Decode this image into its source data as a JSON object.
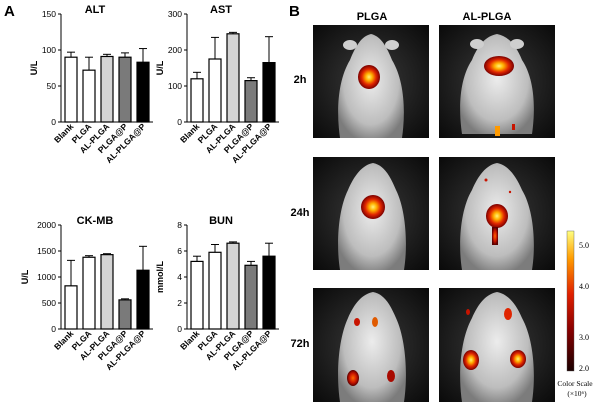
{
  "panel_a_label": "A",
  "panel_b_label": "B",
  "chart_data": [
    {
      "type": "bar",
      "title": "ALT",
      "ylabel": "U/L",
      "ylim": [
        0,
        150
      ],
      "yticks": [
        "0",
        "50",
        "100",
        "150"
      ],
      "categories": [
        "Blank",
        "PLGA",
        "AL-PLGA",
        "PLGA@P",
        "AL-PLGA@P"
      ],
      "values": [
        90,
        72,
        91,
        90,
        83
      ],
      "errors": [
        7,
        18,
        3,
        6,
        19
      ],
      "colors": [
        "#ffffff",
        "#ffffff",
        "#d4d4d4",
        "#7a7a7a",
        "#000000"
      ]
    },
    {
      "type": "bar",
      "title": "AST",
      "ylabel": "U/L",
      "ylim": [
        0,
        300
      ],
      "yticks": [
        "0",
        "100",
        "200",
        "300"
      ],
      "categories": [
        "Blank",
        "PLGA",
        "AL-PLGA",
        "PLGA@P",
        "AL-PLGA@P"
      ],
      "values": [
        120,
        175,
        245,
        115,
        165
      ],
      "errors": [
        18,
        60,
        4,
        8,
        72
      ],
      "colors": [
        "#ffffff",
        "#ffffff",
        "#d4d4d4",
        "#7a7a7a",
        "#000000"
      ]
    },
    {
      "type": "bar",
      "title": "CK-MB",
      "ylabel": "U/L",
      "ylim": [
        0,
        2000
      ],
      "yticks": [
        "0",
        "500",
        "1000",
        "1500",
        "2000"
      ],
      "categories": [
        "Blank",
        "PLGA",
        "AL-PLGA",
        "PLGA@P",
        "AL-PLGA@P"
      ],
      "values": [
        830,
        1380,
        1430,
        560,
        1130
      ],
      "errors": [
        490,
        30,
        18,
        20,
        460
      ],
      "colors": [
        "#ffffff",
        "#ffffff",
        "#d4d4d4",
        "#7a7a7a",
        "#000000"
      ]
    },
    {
      "type": "bar",
      "title": "BUN",
      "ylabel": "mmol/L",
      "ylim": [
        0,
        8
      ],
      "yticks": [
        "0",
        "2",
        "4",
        "6",
        "8"
      ],
      "categories": [
        "Blank",
        "PLGA",
        "AL-PLGA",
        "PLGA@P",
        "AL-PLGA@P"
      ],
      "values": [
        5.2,
        5.9,
        6.6,
        4.9,
        5.6
      ],
      "errors": [
        0.4,
        0.6,
        0.1,
        0.3,
        1.0
      ],
      "colors": [
        "#ffffff",
        "#ffffff",
        "#d4d4d4",
        "#7a7a7a",
        "#000000"
      ]
    }
  ],
  "imaging": {
    "columns": [
      "PLGA",
      "AL-PLGA"
    ],
    "rows": [
      "2h",
      "24h",
      "72h"
    ],
    "colorbar": {
      "ticks": [
        "5.0",
        "4.0",
        "3.0",
        "2.0"
      ],
      "title_line1": "Color Scale",
      "title_line2": "(×10⁶)"
    }
  }
}
